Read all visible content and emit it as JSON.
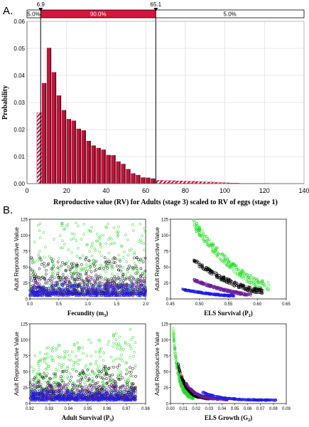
{
  "panel_a_label": "A.",
  "panel_b_label": "B.",
  "chart_data": [
    {
      "type": "bar",
      "panel": "A",
      "xlabel": "Reproductive value (RV) for Adults (stage 3) scaled  to RV of eggs (stage 1)",
      "ylabel": "Probability",
      "xlim": [
        0,
        140
      ],
      "ylim": [
        0,
        0.06
      ],
      "x_ticks": [
        "0",
        "20",
        "40",
        "60",
        "80",
        "100",
        "120",
        "140"
      ],
      "y_ticks": [
        "0.00",
        "0.01",
        "0.02",
        "0.03",
        "0.04",
        "0.05",
        "0.06"
      ],
      "grid": true,
      "bin_width": 2.5,
      "bin_start": 5,
      "values": [
        0.0262,
        0.0372,
        0.0502,
        0.0412,
        0.0326,
        0.0272,
        0.0239,
        0.0233,
        0.0203,
        0.0197,
        0.0158,
        0.0141,
        0.0132,
        0.0126,
        0.0106,
        0.0105,
        0.0082,
        0.0073,
        0.0054,
        0.0038,
        0.0032,
        0.0023,
        0.0022,
        0.0019,
        0.0012,
        0.0012,
        0.0011,
        0.0011,
        0.001,
        0.001,
        0.0009,
        0.0009,
        0.0008,
        0.0007,
        0.0006,
        0.0006,
        0.0005,
        0.0004,
        0.0003,
        0.0002,
        0.0002,
        0.0001,
        0.0001,
        0.0001,
        0.0001,
        0.0001,
        0.0001
      ],
      "interval": {
        "lower": 6.9,
        "upper": 65.1,
        "lower_label": "6.9",
        "upper_label": "65.1",
        "left_pct": "5.0%",
        "middle_pct": "90.0%",
        "right_pct": "5.0%"
      },
      "colors": {
        "bar": "#c0143c",
        "bar_dark": "#7a0c22",
        "interval": "#d8143a"
      }
    },
    {
      "type": "scatter",
      "panel": "B1",
      "xlabel": "Fecundity (m",
      "xlabel_sub": "3",
      "xlabel_end": ")",
      "ylabel": "Adult Reproductive Value",
      "xlim": [
        0,
        2
      ],
      "ylim": [
        0,
        125
      ],
      "x_ticks": [
        "0.0",
        "0.5",
        "1.0",
        "1.5",
        "2.0"
      ],
      "y_ticks": [
        "0",
        "25",
        "50",
        "75",
        "100",
        "125"
      ],
      "series": [
        {
          "color": "#22dd22",
          "x_range": [
            0,
            2
          ],
          "y_range": [
            10,
            120
          ],
          "kind": "cloud"
        },
        {
          "color": "#000000",
          "x_range": [
            0,
            2
          ],
          "y_range": [
            8,
            65
          ],
          "kind": "cloud"
        },
        {
          "color": "#6a1b9a",
          "x_range": [
            0,
            2
          ],
          "y_range": [
            7,
            35
          ],
          "kind": "cloud"
        },
        {
          "color": "#1a1aee",
          "x_range": [
            0,
            2
          ],
          "y_range": [
            5,
            22
          ],
          "kind": "cloud"
        }
      ]
    },
    {
      "type": "scatter",
      "panel": "B2",
      "xlabel": "ELS Survival (P",
      "xlabel_sub": "2",
      "xlabel_end": ")",
      "ylabel": "Adult Reproductive Value",
      "xlim": [
        0.45,
        0.65
      ],
      "ylim": [
        0,
        125
      ],
      "x_ticks": [
        "0.45",
        "0.50",
        "0.55",
        "0.60",
        "0.65"
      ],
      "y_ticks": [
        "0",
        "25",
        "50",
        "75",
        "100",
        "125"
      ],
      "series": [
        {
          "color": "#22dd22",
          "x_range": [
            0.49,
            0.62
          ],
          "y_range": [
            118,
            20
          ],
          "kind": "curve"
        },
        {
          "color": "#000000",
          "x_range": [
            0.49,
            0.61
          ],
          "y_range": [
            60,
            12
          ],
          "kind": "curve"
        },
        {
          "color": "#6a1b9a",
          "x_range": [
            0.49,
            0.59
          ],
          "y_range": [
            30,
            7
          ],
          "kind": "curve"
        },
        {
          "color": "#1a1aee",
          "x_range": [
            0.47,
            0.56
          ],
          "y_range": [
            15,
            5
          ],
          "kind": "curve"
        }
      ]
    },
    {
      "type": "scatter",
      "panel": "B3",
      "xlabel": "Adult Survival (P",
      "xlabel_sub": "3",
      "xlabel_end": ")",
      "ylabel": "Adult Reproductive Value",
      "xlim": [
        0.92,
        0.98
      ],
      "ylim": [
        0,
        125
      ],
      "x_ticks": [
        "0.92",
        "0.93",
        "0.94",
        "0.95",
        "0.96",
        "0.97",
        "0.98"
      ],
      "y_ticks": [
        "0",
        "25",
        "50",
        "75",
        "100",
        "125"
      ],
      "series": [
        {
          "color": "#22dd22",
          "x_range": [
            0.92,
            0.975
          ],
          "y_range": [
            10,
            120
          ],
          "kind": "cloud_rising"
        },
        {
          "color": "#000000",
          "x_range": [
            0.92,
            0.975
          ],
          "y_range": [
            8,
            65
          ],
          "kind": "cloud_rising"
        },
        {
          "color": "#6a1b9a",
          "x_range": [
            0.92,
            0.975
          ],
          "y_range": [
            7,
            30
          ],
          "kind": "cloud"
        },
        {
          "color": "#1a1aee",
          "x_range": [
            0.92,
            0.975
          ],
          "y_range": [
            5,
            20
          ],
          "kind": "cloud"
        }
      ]
    },
    {
      "type": "scatter",
      "panel": "B4",
      "xlabel": "ELS Growth (G",
      "xlabel_sub": "2",
      "xlabel_end": ")",
      "ylabel": "Adult Reproductive Value",
      "xlim": [
        0,
        0.09
      ],
      "ylim": [
        0,
        125
      ],
      "x_ticks": [
        "0.00",
        "0.01",
        "0.02",
        "0.03",
        "0.04",
        "0.05",
        "0.06",
        "0.07",
        "0.08",
        "0.09"
      ],
      "y_ticks": [
        "0",
        "25",
        "50",
        "75",
        "100",
        "125"
      ],
      "series": [
        {
          "color": "#22dd22",
          "x_range": [
            0.002,
            0.018
          ],
          "y_range": [
            118,
            10
          ],
          "kind": "decay"
        },
        {
          "color": "#000000",
          "x_range": [
            0.006,
            0.03
          ],
          "y_range": [
            62,
            8
          ],
          "kind": "decay"
        },
        {
          "color": "#6a1b9a",
          "x_range": [
            0.012,
            0.045
          ],
          "y_range": [
            32,
            6
          ],
          "kind": "decay"
        },
        {
          "color": "#1a1aee",
          "x_range": [
            0.025,
            0.082
          ],
          "y_range": [
            18,
            5
          ],
          "kind": "decay"
        }
      ]
    }
  ]
}
